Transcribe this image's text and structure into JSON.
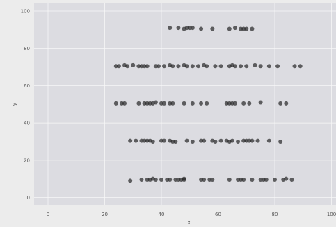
{
  "chart_data": {
    "type": "scatter",
    "title": "",
    "xlabel": "x",
    "ylabel": "y",
    "xlim": [
      -5,
      100
    ],
    "ylim": [
      -5,
      105
    ],
    "xticks": [
      0,
      20,
      40,
      60,
      80,
      100
    ],
    "yticks": [
      0,
      20,
      40,
      60,
      80,
      100
    ],
    "xtick_labels": [
      "0",
      "20",
      "40",
      "60",
      "80",
      "100"
    ],
    "ytick_labels": [
      "0",
      "20",
      "40",
      "60",
      "80",
      "100"
    ],
    "grid": true,
    "colors": {
      "figure_background": "#ececec",
      "plot_background": "#dcdce1",
      "grid": "#f7f7f7",
      "point": "#2b2b2b"
    },
    "series": [
      {
        "points": [
          [
            29,
            9
          ],
          [
            33,
            9.5
          ],
          [
            35,
            9.5
          ],
          [
            36,
            9.5
          ],
          [
            37,
            10
          ],
          [
            38,
            9.5
          ],
          [
            40,
            9.5
          ],
          [
            42,
            9.5
          ],
          [
            43,
            9.5
          ],
          [
            45,
            9.5
          ],
          [
            46,
            9.5
          ],
          [
            47,
            9.5
          ],
          [
            48,
            10
          ],
          [
            48,
            9.5
          ],
          [
            54,
            9.5
          ],
          [
            55,
            9.5
          ],
          [
            57,
            9.5
          ],
          [
            58,
            9.5
          ],
          [
            64,
            9.5
          ],
          [
            67,
            9.5
          ],
          [
            68,
            9.5
          ],
          [
            69,
            9.5
          ],
          [
            72,
            9.5
          ],
          [
            75,
            9.5
          ],
          [
            76,
            9.5
          ],
          [
            77,
            9.5
          ],
          [
            80,
            9.5
          ],
          [
            83,
            9.5
          ],
          [
            84,
            10
          ],
          [
            86,
            9.5
          ],
          [
            29,
            30.5
          ],
          [
            31,
            30.5
          ],
          [
            33,
            30.5
          ],
          [
            34,
            30.5
          ],
          [
            35,
            30.5
          ],
          [
            36,
            30.5
          ],
          [
            37,
            30
          ],
          [
            40,
            30.5
          ],
          [
            41,
            30.5
          ],
          [
            43,
            30.5
          ],
          [
            44,
            30
          ],
          [
            45,
            30
          ],
          [
            49,
            30.5
          ],
          [
            51,
            30
          ],
          [
            54,
            30.5
          ],
          [
            55,
            30.5
          ],
          [
            58,
            30.5
          ],
          [
            59,
            30
          ],
          [
            61,
            30.5
          ],
          [
            63,
            30.5
          ],
          [
            64,
            30
          ],
          [
            65,
            30.5
          ],
          [
            67,
            30
          ],
          [
            69,
            30.5
          ],
          [
            70,
            30.5
          ],
          [
            71,
            30.5
          ],
          [
            72,
            30.5
          ],
          [
            74,
            30.5
          ],
          [
            78,
            30.5
          ],
          [
            82,
            30
          ],
          [
            24,
            50.5
          ],
          [
            26,
            50.5
          ],
          [
            27,
            50.5
          ],
          [
            32,
            50.5
          ],
          [
            34,
            50.5
          ],
          [
            35,
            50.5
          ],
          [
            36,
            50.5
          ],
          [
            37,
            50.5
          ],
          [
            38,
            51
          ],
          [
            40,
            50.5
          ],
          [
            41,
            50.5
          ],
          [
            43,
            50.5
          ],
          [
            44,
            50.5
          ],
          [
            48,
            50.5
          ],
          [
            51,
            50.5
          ],
          [
            54,
            50.5
          ],
          [
            56,
            50.5
          ],
          [
            63,
            50.5
          ],
          [
            64,
            50.5
          ],
          [
            65,
            50.5
          ],
          [
            66,
            50.5
          ],
          [
            69,
            50.5
          ],
          [
            71,
            50.5
          ],
          [
            75,
            51
          ],
          [
            82,
            50.5
          ],
          [
            84,
            50.5
          ],
          [
            24,
            70.5
          ],
          [
            25,
            70.5
          ],
          [
            27,
            71
          ],
          [
            28,
            70.5
          ],
          [
            30,
            71
          ],
          [
            32,
            70.5
          ],
          [
            33,
            70.5
          ],
          [
            34,
            70.5
          ],
          [
            35,
            70.5
          ],
          [
            38,
            70.5
          ],
          [
            39,
            70.5
          ],
          [
            41,
            70.5
          ],
          [
            43,
            71
          ],
          [
            44,
            70.5
          ],
          [
            46,
            70.5
          ],
          [
            48,
            71
          ],
          [
            49,
            70.5
          ],
          [
            51,
            70.5
          ],
          [
            53,
            70.5
          ],
          [
            55,
            71
          ],
          [
            56,
            70.5
          ],
          [
            59,
            70.5
          ],
          [
            61,
            70.5
          ],
          [
            64,
            70.5
          ],
          [
            65,
            71
          ],
          [
            66,
            70.5
          ],
          [
            68,
            70.5
          ],
          [
            70,
            70.5
          ],
          [
            73,
            71
          ],
          [
            75,
            70.5
          ],
          [
            78,
            70.5
          ],
          [
            81,
            70.5
          ],
          [
            87,
            70.5
          ],
          [
            89,
            70.5
          ],
          [
            43,
            91
          ],
          [
            46,
            91
          ],
          [
            48,
            90.5
          ],
          [
            49,
            91
          ],
          [
            50,
            91
          ],
          [
            51,
            91
          ],
          [
            54,
            90.5
          ],
          [
            58,
            90.5
          ],
          [
            64,
            90.5
          ],
          [
            66,
            91
          ],
          [
            68,
            90.5
          ],
          [
            69,
            90.5
          ],
          [
            70,
            90.5
          ],
          [
            72,
            90.5
          ]
        ]
      }
    ]
  }
}
